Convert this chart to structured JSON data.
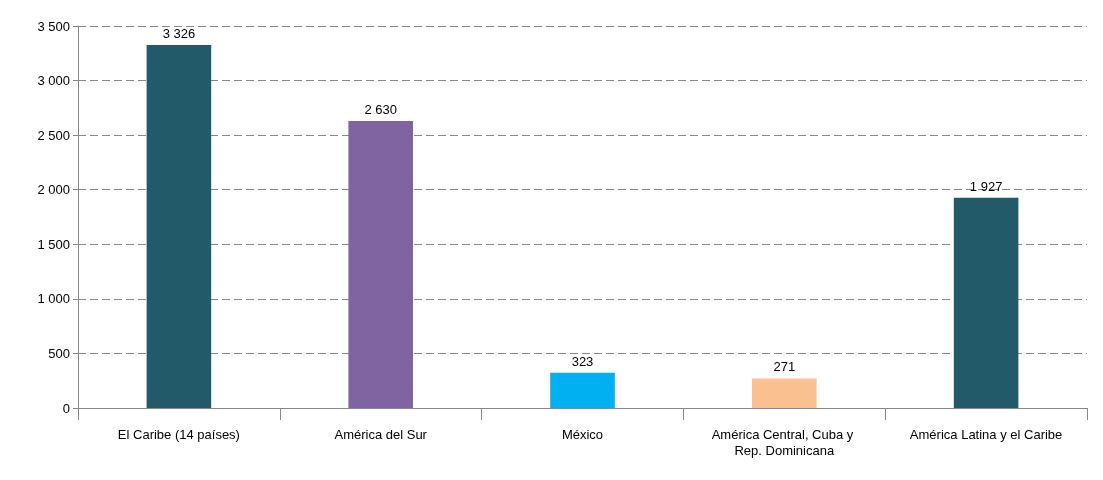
{
  "chart_data": {
    "type": "bar",
    "categories": [
      "El Caribe (14 países)",
      "América del Sur",
      "México",
      "América Central, Cuba y Rep. Dominicana",
      "América Latina y el Caribe"
    ],
    "values": [
      3326,
      2630,
      323,
      271,
      1927
    ],
    "colors": [
      "#225a69",
      "#8064a2",
      "#00b0f0",
      "#fac090",
      "#225a69"
    ],
    "value_labels": [
      "3 326",
      "2 630",
      "323",
      "271",
      "1 927"
    ],
    "ylim": [
      0,
      3500
    ],
    "yticks": [
      0,
      {
        "value": 500,
        "label": "500"
      },
      {
        "value": 1000,
        "label": "1 000"
      },
      {
        "value": 1500,
        "label": "1 500"
      },
      {
        "value": 2000,
        "label": "2 000"
      },
      {
        "value": 2500,
        "label": "2 500"
      },
      {
        "value": 3000,
        "label": "3 000"
      },
      {
        "value": 3500,
        "label": "3 500"
      }
    ],
    "grid": "y"
  }
}
